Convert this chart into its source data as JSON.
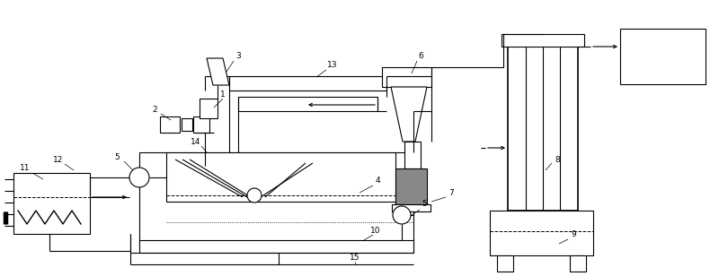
{
  "bg_color": "#ffffff",
  "lc": "#000000",
  "fig_width": 8.0,
  "fig_height": 3.08,
  "dpi": 100
}
